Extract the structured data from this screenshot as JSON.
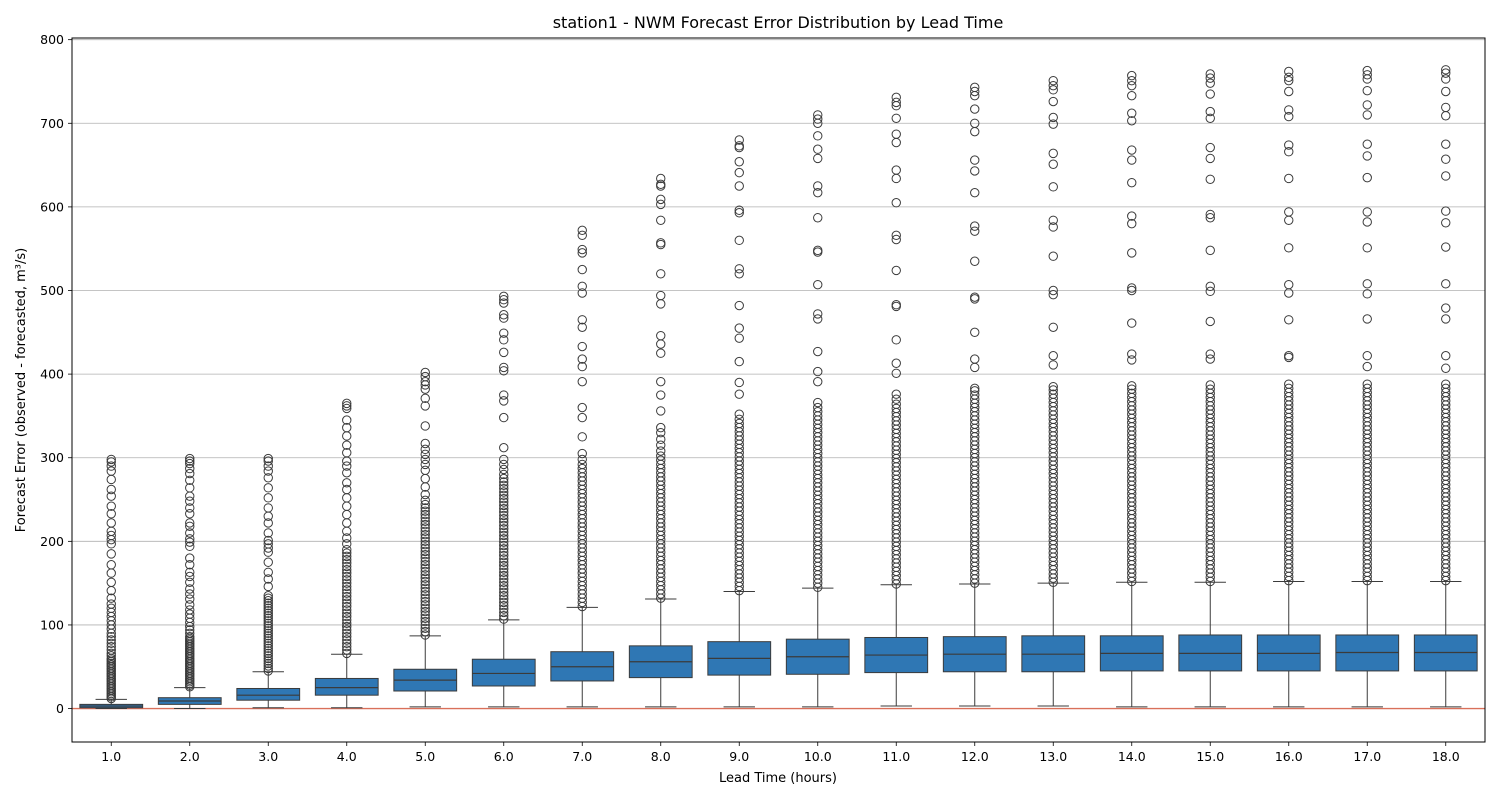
{
  "chart_data": {
    "type": "box",
    "title": "station1 - NWM Forecast Error Distribution by Lead Time",
    "xlabel": "Lead Time (hours)",
    "ylabel": "Forecast Error (observed - forecasted, m³/s)",
    "ylim": [
      -40,
      802
    ],
    "yticks": [
      0,
      100,
      200,
      300,
      400,
      500,
      600,
      700,
      800
    ],
    "grid": "y",
    "reference_line": {
      "y": 0,
      "color": "#d9705a"
    },
    "box_color": "#2f77b4",
    "median_color": "#3b3b3b",
    "categories": [
      "1.0",
      "2.0",
      "3.0",
      "4.0",
      "5.0",
      "6.0",
      "7.0",
      "8.0",
      "9.0",
      "10.0",
      "11.0",
      "12.0",
      "13.0",
      "14.0",
      "15.0",
      "16.0",
      "17.0",
      "18.0"
    ],
    "boxes": [
      {
        "whislo": 0,
        "q1": 1,
        "med": 3,
        "q3": 5,
        "whishi": 11
      },
      {
        "whislo": 0,
        "q1": 5,
        "med": 9,
        "q3": 13,
        "whishi": 25
      },
      {
        "whislo": 1,
        "q1": 10,
        "med": 16,
        "q3": 24,
        "whishi": 44
      },
      {
        "whislo": 1,
        "q1": 16,
        "med": 25,
        "q3": 36,
        "whishi": 65
      },
      {
        "whislo": 2,
        "q1": 21,
        "med": 34,
        "q3": 47,
        "whishi": 87
      },
      {
        "whislo": 2,
        "q1": 27,
        "med": 42,
        "q3": 59,
        "whishi": 106
      },
      {
        "whislo": 2,
        "q1": 33,
        "med": 50,
        "q3": 68,
        "whishi": 121
      },
      {
        "whislo": 2,
        "q1": 37,
        "med": 56,
        "q3": 75,
        "whishi": 131
      },
      {
        "whislo": 2,
        "q1": 40,
        "med": 60,
        "q3": 80,
        "whishi": 140
      },
      {
        "whislo": 2,
        "q1": 41,
        "med": 62,
        "q3": 83,
        "whishi": 144
      },
      {
        "whislo": 3,
        "q1": 43,
        "med": 64,
        "q3": 85,
        "whishi": 148
      },
      {
        "whislo": 3,
        "q1": 44,
        "med": 65,
        "q3": 86,
        "whishi": 149
      },
      {
        "whislo": 3,
        "q1": 44,
        "med": 65,
        "q3": 87,
        "whishi": 150
      },
      {
        "whislo": 2,
        "q1": 45,
        "med": 66,
        "q3": 87,
        "whishi": 151
      },
      {
        "whislo": 2,
        "q1": 45,
        "med": 66,
        "q3": 88,
        "whishi": 151
      },
      {
        "whislo": 2,
        "q1": 45,
        "med": 66,
        "q3": 88,
        "whishi": 152
      },
      {
        "whislo": 2,
        "q1": 45,
        "med": 67,
        "q3": 88,
        "whishi": 152
      },
      {
        "whislo": 2,
        "q1": 45,
        "med": 67,
        "q3": 88,
        "whishi": 152
      }
    ],
    "outliers": [
      [
        12,
        14,
        16,
        18,
        20,
        22,
        24,
        26,
        28,
        30,
        32,
        34,
        36,
        38,
        40,
        42,
        44,
        46,
        48,
        50,
        52,
        54,
        56,
        58,
        60,
        63,
        66,
        70,
        74,
        78,
        82,
        86,
        90,
        95,
        100,
        105,
        110,
        115,
        120,
        125,
        132,
        141,
        151,
        162,
        172,
        185,
        197,
        202,
        207,
        212,
        222,
        233,
        242,
        254,
        262,
        274,
        284,
        290,
        295,
        298
      ],
      [
        26,
        28,
        30,
        32,
        34,
        36,
        38,
        40,
        42,
        44,
        46,
        48,
        50,
        52,
        54,
        56,
        58,
        60,
        62,
        64,
        66,
        68,
        70,
        72,
        74,
        76,
        78,
        80,
        82,
        84,
        86,
        90,
        94,
        98,
        103,
        108,
        113,
        118,
        124,
        131,
        137,
        143,
        151,
        158,
        163,
        172,
        180,
        194,
        199,
        203,
        210,
        218,
        222,
        233,
        240,
        248,
        254,
        264,
        273,
        281,
        287,
        293,
        296,
        299
      ],
      [
        45,
        48,
        51,
        54,
        57,
        60,
        63,
        66,
        69,
        72,
        75,
        78,
        81,
        84,
        87,
        90,
        93,
        96,
        99,
        102,
        105,
        108,
        111,
        114,
        117,
        120,
        123,
        126,
        129,
        132,
        135,
        146,
        155,
        163,
        175,
        187,
        192,
        197,
        201,
        210,
        222,
        230,
        240,
        252,
        264,
        276,
        284,
        290,
        296,
        299
      ],
      [
        66,
        70,
        74,
        78,
        82,
        86,
        90,
        94,
        98,
        102,
        106,
        110,
        114,
        118,
        122,
        126,
        130,
        134,
        138,
        142,
        146,
        150,
        154,
        158,
        162,
        166,
        170,
        174,
        178,
        182,
        186,
        190,
        197,
        204,
        212,
        222,
        232,
        242,
        252,
        262,
        270,
        282,
        290,
        296,
        306,
        315,
        326,
        336,
        345,
        359,
        362,
        365
      ],
      [
        88,
        92,
        96,
        100,
        104,
        108,
        112,
        116,
        120,
        124,
        128,
        132,
        136,
        140,
        144,
        148,
        152,
        156,
        160,
        164,
        168,
        172,
        176,
        180,
        184,
        188,
        192,
        196,
        200,
        204,
        208,
        212,
        216,
        220,
        224,
        228,
        232,
        236,
        240,
        244,
        249,
        256,
        265,
        275,
        285,
        292,
        298,
        304,
        310,
        317,
        338,
        362,
        371,
        382,
        387,
        391,
        397,
        402
      ],
      [
        107,
        111,
        115,
        119,
        123,
        127,
        131,
        135,
        139,
        143,
        147,
        151,
        155,
        159,
        163,
        167,
        171,
        175,
        179,
        183,
        187,
        191,
        195,
        199,
        203,
        207,
        211,
        215,
        219,
        223,
        227,
        231,
        235,
        239,
        243,
        247,
        251,
        255,
        259,
        263,
        267,
        271,
        275,
        280,
        286,
        292,
        298,
        312,
        348,
        368,
        375,
        404,
        408,
        426,
        441,
        449,
        467,
        471,
        485,
        489,
        493
      ],
      [
        122,
        127,
        132,
        137,
        142,
        147,
        152,
        157,
        162,
        167,
        172,
        177,
        182,
        187,
        192,
        197,
        202,
        207,
        212,
        217,
        222,
        227,
        232,
        237,
        242,
        247,
        252,
        257,
        262,
        267,
        272,
        277,
        282,
        287,
        292,
        298,
        305,
        325,
        348,
        360,
        391,
        409,
        418,
        433,
        456,
        465,
        497,
        505,
        525,
        545,
        549,
        566,
        572
      ],
      [
        132,
        137,
        142,
        147,
        152,
        157,
        162,
        167,
        172,
        177,
        182,
        187,
        192,
        197,
        202,
        207,
        212,
        217,
        222,
        227,
        232,
        237,
        242,
        247,
        252,
        257,
        262,
        267,
        272,
        277,
        282,
        287,
        292,
        297,
        302,
        308,
        315,
        322,
        330,
        336,
        356,
        375,
        391,
        425,
        436,
        446,
        484,
        494,
        520,
        555,
        557,
        584,
        603,
        609,
        625,
        627,
        634
      ],
      [
        141,
        146,
        151,
        156,
        161,
        166,
        171,
        176,
        181,
        186,
        191,
        196,
        201,
        206,
        211,
        216,
        221,
        226,
        231,
        236,
        241,
        246,
        251,
        256,
        261,
        266,
        271,
        276,
        281,
        286,
        291,
        296,
        301,
        306,
        311,
        316,
        321,
        326,
        331,
        336,
        341,
        346,
        352,
        376,
        390,
        415,
        443,
        455,
        482,
        520,
        526,
        560,
        593,
        596,
        625,
        641,
        654,
        671,
        673,
        680
      ],
      [
        145,
        150,
        155,
        160,
        165,
        170,
        175,
        180,
        185,
        190,
        195,
        200,
        205,
        210,
        215,
        220,
        225,
        230,
        235,
        240,
        245,
        250,
        255,
        260,
        265,
        270,
        275,
        280,
        285,
        290,
        295,
        300,
        305,
        310,
        315,
        320,
        325,
        330,
        335,
        340,
        345,
        350,
        355,
        360,
        366,
        391,
        403,
        427,
        466,
        472,
        507,
        546,
        548,
        587,
        617,
        625,
        658,
        669,
        685,
        700,
        705,
        710
      ],
      [
        149,
        154,
        159,
        164,
        169,
        174,
        179,
        184,
        189,
        194,
        199,
        204,
        209,
        214,
        219,
        224,
        229,
        234,
        239,
        244,
        249,
        254,
        259,
        264,
        269,
        274,
        279,
        284,
        289,
        294,
        299,
        304,
        309,
        314,
        319,
        324,
        329,
        334,
        339,
        344,
        349,
        354,
        359,
        364,
        370,
        376,
        401,
        413,
        441,
        481,
        483,
        524,
        561,
        566,
        605,
        634,
        644,
        677,
        687,
        706,
        721,
        725,
        731
      ],
      [
        150,
        155,
        160,
        165,
        170,
        175,
        180,
        185,
        190,
        195,
        200,
        205,
        210,
        215,
        220,
        225,
        230,
        235,
        240,
        245,
        250,
        255,
        260,
        265,
        270,
        275,
        280,
        285,
        290,
        295,
        300,
        305,
        310,
        315,
        320,
        325,
        330,
        335,
        340,
        345,
        350,
        355,
        360,
        365,
        370,
        375,
        380,
        383,
        408,
        418,
        450,
        490,
        492,
        535,
        571,
        577,
        617,
        643,
        656,
        690,
        700,
        717,
        733,
        738,
        743
      ],
      [
        151,
        156,
        161,
        166,
        171,
        176,
        181,
        186,
        191,
        196,
        201,
        206,
        211,
        216,
        221,
        226,
        231,
        236,
        241,
        246,
        251,
        256,
        261,
        266,
        271,
        276,
        281,
        286,
        291,
        296,
        301,
        306,
        311,
        316,
        321,
        326,
        331,
        336,
        341,
        346,
        351,
        356,
        361,
        366,
        371,
        376,
        381,
        385,
        411,
        422,
        456,
        495,
        500,
        541,
        576,
        584,
        624,
        651,
        664,
        699,
        707,
        726,
        740,
        745,
        751
      ],
      [
        152,
        157,
        162,
        167,
        172,
        177,
        182,
        187,
        192,
        197,
        202,
        207,
        212,
        217,
        222,
        227,
        232,
        237,
        242,
        247,
        252,
        257,
        262,
        267,
        272,
        277,
        282,
        287,
        292,
        297,
        302,
        307,
        312,
        317,
        322,
        327,
        332,
        337,
        342,
        347,
        352,
        357,
        362,
        367,
        372,
        377,
        382,
        386,
        417,
        424,
        461,
        500,
        503,
        545,
        580,
        589,
        629,
        656,
        668,
        703,
        712,
        733,
        745,
        751,
        757
      ],
      [
        152,
        157,
        162,
        167,
        172,
        177,
        182,
        187,
        192,
        197,
        202,
        207,
        212,
        217,
        222,
        227,
        232,
        237,
        242,
        247,
        252,
        257,
        262,
        267,
        272,
        277,
        282,
        287,
        292,
        297,
        302,
        307,
        312,
        317,
        322,
        327,
        332,
        337,
        342,
        347,
        352,
        357,
        362,
        367,
        372,
        377,
        382,
        387,
        418,
        424,
        463,
        499,
        505,
        548,
        587,
        591,
        633,
        658,
        671,
        706,
        714,
        735,
        748,
        754,
        759
      ],
      [
        153,
        158,
        163,
        168,
        173,
        178,
        183,
        188,
        193,
        198,
        203,
        208,
        213,
        218,
        223,
        228,
        233,
        238,
        243,
        248,
        253,
        258,
        263,
        268,
        273,
        278,
        283,
        288,
        293,
        298,
        303,
        308,
        313,
        318,
        323,
        328,
        333,
        338,
        343,
        348,
        353,
        358,
        363,
        368,
        373,
        378,
        383,
        388,
        420,
        422,
        465,
        497,
        507,
        551,
        584,
        594,
        634,
        666,
        674,
        708,
        716,
        738,
        751,
        755,
        762
      ],
      [
        153,
        158,
        163,
        168,
        173,
        178,
        183,
        188,
        193,
        198,
        203,
        208,
        213,
        218,
        223,
        228,
        233,
        238,
        243,
        248,
        253,
        258,
        263,
        268,
        273,
        278,
        283,
        288,
        293,
        298,
        303,
        308,
        313,
        318,
        323,
        328,
        333,
        338,
        343,
        348,
        353,
        358,
        363,
        368,
        373,
        378,
        383,
        388,
        409,
        422,
        466,
        496,
        508,
        551,
        582,
        594,
        635,
        661,
        675,
        710,
        722,
        739,
        753,
        758,
        763
      ],
      [
        153,
        158,
        163,
        168,
        173,
        178,
        183,
        188,
        193,
        198,
        203,
        208,
        213,
        218,
        223,
        228,
        233,
        238,
        243,
        248,
        253,
        258,
        263,
        268,
        273,
        278,
        283,
        288,
        293,
        298,
        303,
        308,
        313,
        318,
        323,
        328,
        333,
        338,
        343,
        348,
        353,
        358,
        363,
        368,
        373,
        378,
        383,
        388,
        407,
        422,
        466,
        479,
        508,
        552,
        581,
        595,
        637,
        657,
        675,
        709,
        719,
        738,
        753,
        760,
        764
      ]
    ]
  }
}
